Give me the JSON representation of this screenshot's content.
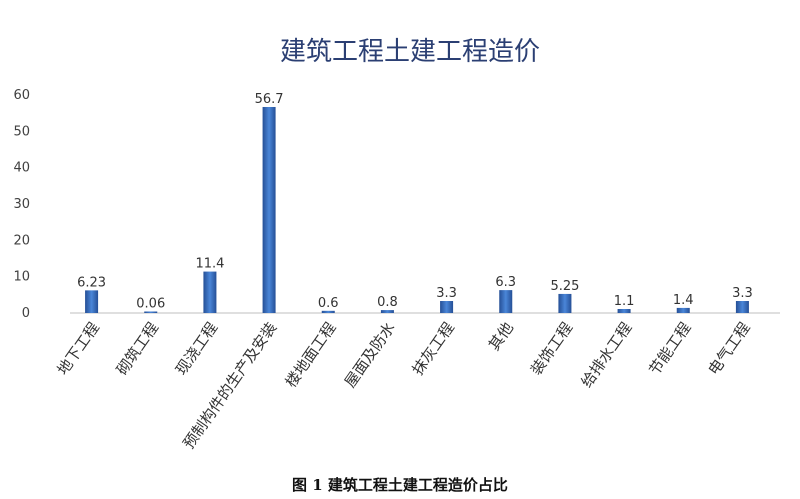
{
  "figure_caption": "图 1   建筑工程土建工程造价占比",
  "chart_data": {
    "type": "bar",
    "title": "建筑工程土建工程造价",
    "categories": [
      "地下工程",
      "砌筑工程",
      "现浇工程",
      "预制构件的生产及安装",
      "楼地面工程",
      "屋面及防水",
      "抹灰工程",
      "其他",
      "装饰工程",
      "给排水工程",
      "节能工程",
      "电气工程"
    ],
    "values": [
      6.23,
      0.06,
      11.4,
      56.7,
      0.6,
      0.8,
      3.3,
      6.3,
      5.25,
      1.1,
      1.4,
      3.3
    ],
    "data_labels": [
      "6.23",
      "0.06",
      "11.4",
      "56.7",
      "0.6",
      "0.8",
      "3.3",
      "6.3",
      "5.25",
      "1.1",
      "1.4",
      "3.3"
    ],
    "ylim": [
      0,
      60
    ],
    "yticks": [
      0,
      10,
      20,
      30,
      40,
      50,
      60
    ],
    "grid": false,
    "legend": "none",
    "bar_color": "#3a6fc0",
    "bar_color_dark": "#254f96"
  }
}
